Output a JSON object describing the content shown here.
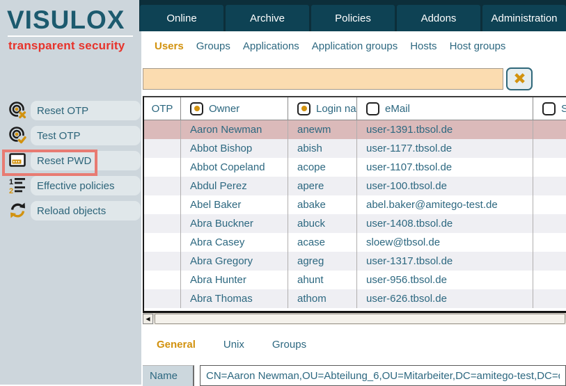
{
  "logo": {
    "title": "VISULOX",
    "tagline": "transparent security"
  },
  "top_nav": {
    "tabs": [
      {
        "label": "Online"
      },
      {
        "label": "Archive"
      },
      {
        "label": "Policies"
      },
      {
        "label": "Addons"
      },
      {
        "label": "Administration"
      }
    ]
  },
  "sub_nav": {
    "tabs": [
      {
        "label": "Users",
        "active": true
      },
      {
        "label": "Groups"
      },
      {
        "label": "Applications"
      },
      {
        "label": "Application groups"
      },
      {
        "label": "Hosts"
      },
      {
        "label": "Host groups"
      }
    ]
  },
  "search": {
    "value": ""
  },
  "sidebar": {
    "items": [
      {
        "label": "Reset OTP",
        "icon": "otp-reset-icon"
      },
      {
        "label": "Test OTP",
        "icon": "otp-test-icon"
      },
      {
        "label": "Reset PWD",
        "icon": "password-window-icon",
        "highlighted": true
      },
      {
        "label": "Effective policies",
        "icon": "numbered-list-icon"
      },
      {
        "label": "Reload objects",
        "icon": "reload-icon"
      }
    ]
  },
  "table": {
    "columns": [
      {
        "label": "OTP",
        "selector": "none"
      },
      {
        "label": "Owner",
        "selector": "radio-checked"
      },
      {
        "label": "Login name",
        "selector": "radio-checked"
      },
      {
        "label": "eMail",
        "selector": "checkbox-unchecked"
      },
      {
        "label": "SM",
        "selector": "checkbox-unchecked"
      }
    ],
    "rows": [
      {
        "owner": "Aaron Newman",
        "login": "anewm",
        "email": "user-1391.tbsol.de",
        "selected": true
      },
      {
        "owner": "Abbot Bishop",
        "login": "abish",
        "email": "user-1177.tbsol.de"
      },
      {
        "owner": "Abbot Copeland",
        "login": "acope",
        "email": "user-1107.tbsol.de"
      },
      {
        "owner": "Abdul Perez",
        "login": "apere",
        "email": "user-100.tbsol.de"
      },
      {
        "owner": "Abel Baker",
        "login": "abake",
        "email": "abel.baker@amitego-test.de"
      },
      {
        "owner": "Abra Buckner",
        "login": "abuck",
        "email": "user-1408.tbsol.de"
      },
      {
        "owner": "Abra Casey",
        "login": "acase",
        "email": "sloew@tbsol.de"
      },
      {
        "owner": "Abra Gregory",
        "login": "agreg",
        "email": "user-1317.tbsol.de"
      },
      {
        "owner": "Abra Hunter",
        "login": "ahunt",
        "email": "user-956.tbsol.de"
      },
      {
        "owner": "Abra Thomas",
        "login": "athom",
        "email": "user-626.tbsol.de"
      }
    ]
  },
  "detail": {
    "tabs": [
      {
        "label": "General",
        "active": true
      },
      {
        "label": "Unix"
      },
      {
        "label": "Groups"
      }
    ],
    "fields": [
      {
        "label": "Name",
        "value": "CN=Aaron Newman,OU=Abteilung_6,OU=Mitarbeiter,DC=amitego-test,DC=de"
      }
    ]
  },
  "colors": {
    "accent_orange": "#d2920f",
    "tab_teal": "#0e4254",
    "topbar_dark": "#0c2e3a",
    "text_teal": "#2d6880",
    "selected_row_pink": "#dbbaba",
    "highlight_red": "#e87b72",
    "logo_teal": "#1c5a6e",
    "logo_red": "#e7332b",
    "search_bg": "#fbdcb0",
    "sidebar_bg": "#cdd6dc"
  }
}
